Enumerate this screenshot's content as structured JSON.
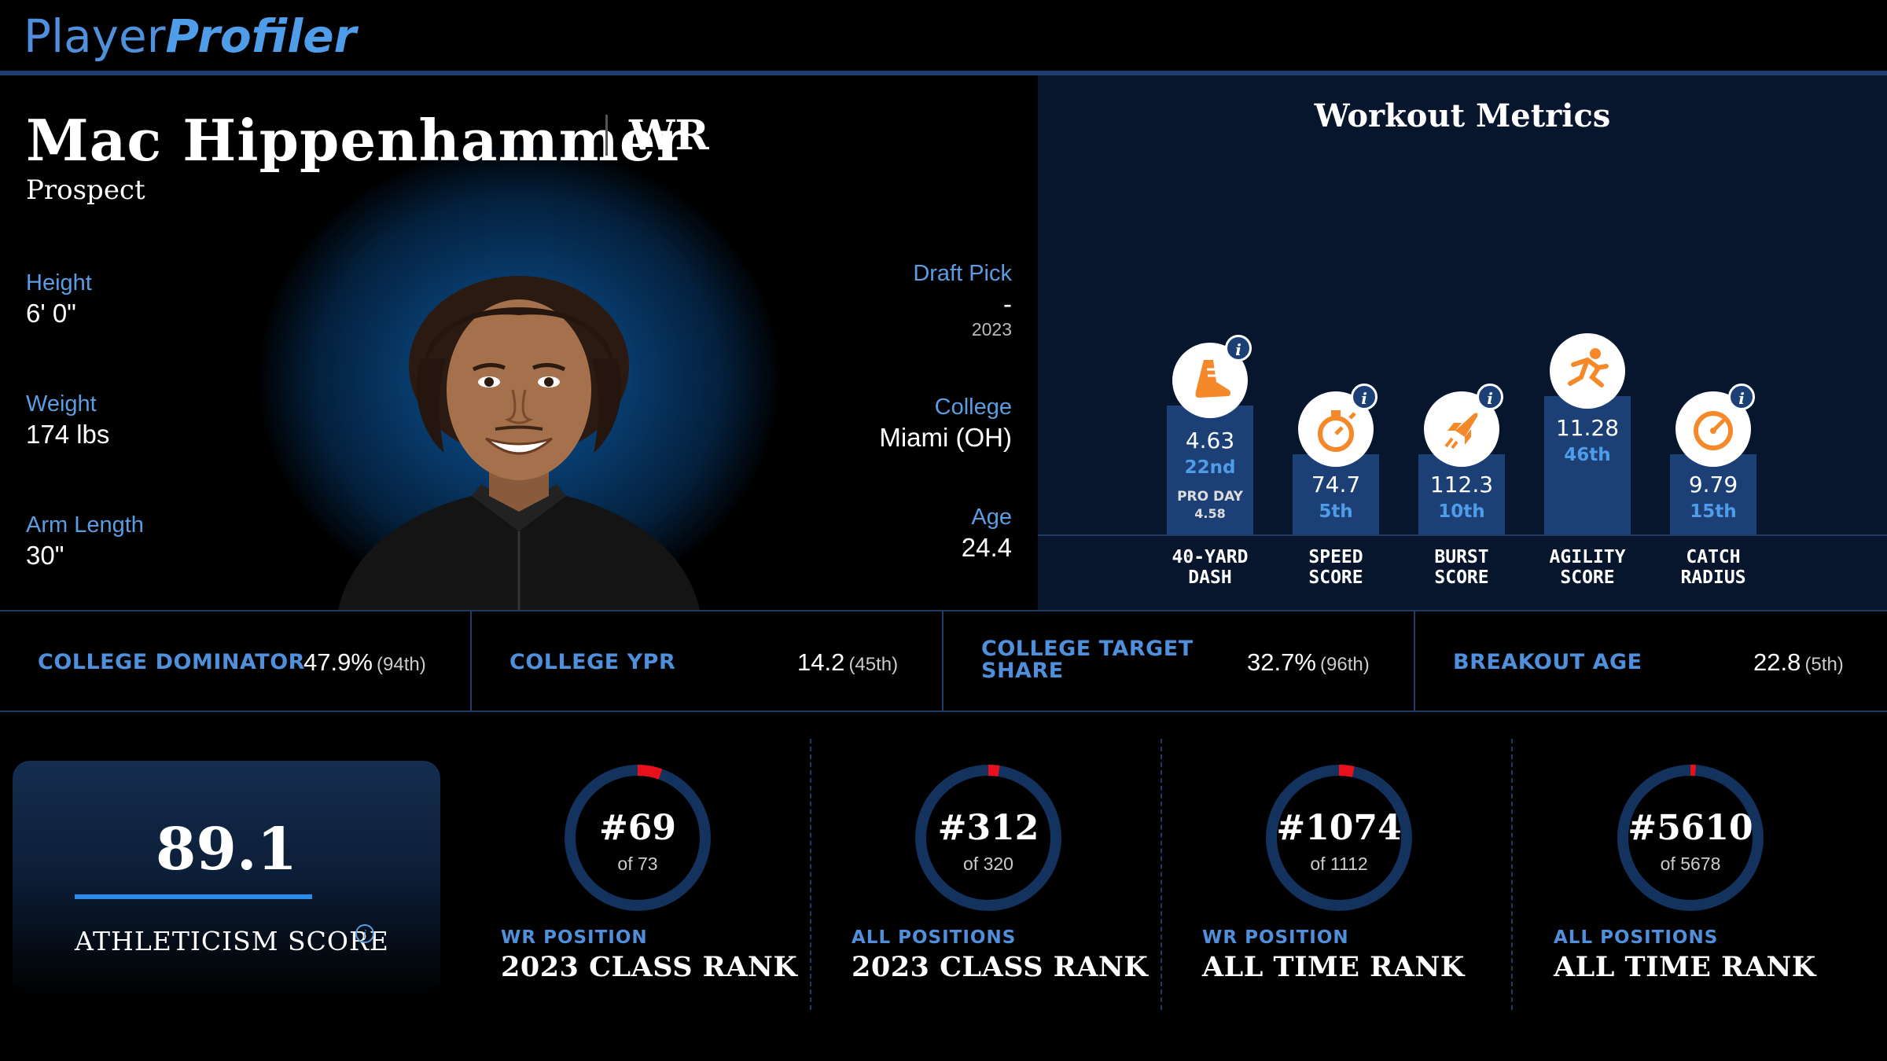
{
  "header": {
    "logo_part1": "Player",
    "logo_part2": "Profiler"
  },
  "player": {
    "name": "Mac Hippenhammer",
    "position": "WR",
    "status": "Prospect",
    "left_stats": [
      {
        "label": "Height",
        "value": "6' 0\""
      },
      {
        "label": "Weight",
        "value": "174 lbs"
      },
      {
        "label": "Arm Length",
        "value": "30\""
      }
    ],
    "draft_pick": {
      "label": "Draft Pick",
      "value": "-",
      "year": "2023"
    },
    "college": {
      "label": "College",
      "value": "Miami (OH)"
    },
    "age": {
      "label": "Age",
      "value": "24.4"
    }
  },
  "workout": {
    "title": "Workout Metrics",
    "metrics": [
      {
        "label1": "40-YARD",
        "label2": "DASH",
        "value": "4.63",
        "rank": "22nd",
        "extra_label": "PRO DAY",
        "extra_value": "4.58",
        "icon": "shoe-icon",
        "level": 0.78
      },
      {
        "label1": "SPEED",
        "label2": "SCORE",
        "value": "74.7",
        "rank": "5th",
        "icon": "stopwatch-icon",
        "level": 0.52
      },
      {
        "label1": "BURST",
        "label2": "SCORE",
        "value": "112.3",
        "rank": "10th",
        "icon": "rocket-icon",
        "level": 0.52
      },
      {
        "label1": "AGILITY",
        "label2": "SCORE",
        "value": "11.28",
        "rank": "46th",
        "icon": "runner-icon",
        "level": 0.88
      },
      {
        "label1": "CATCH",
        "label2": "RADIUS",
        "value": "9.79",
        "rank": "15th",
        "icon": "gauge-icon",
        "level": 0.52
      }
    ],
    "accent": "#f5892a"
  },
  "stats": [
    {
      "label": "COLLEGE DOMINATOR",
      "value": "47.9%",
      "rank": "(94th)"
    },
    {
      "label": "COLLEGE YPR",
      "value": "14.2",
      "rank": "(45th)"
    },
    {
      "label": "COLLEGE TARGET SHARE",
      "label_line1": "COLLEGE TARGET",
      "label_line2": "SHARE",
      "value": "32.7%",
      "rank": "(96th)"
    },
    {
      "label": "BREAKOUT AGE",
      "value": "22.8",
      "rank": "(5th)"
    }
  ],
  "athleticism": {
    "score": "89.1",
    "label": "ATHLETICISM SCORE"
  },
  "ranks": [
    {
      "rank": "#69",
      "of": "of 73",
      "sub": "WR POSITION",
      "main": "2023 CLASS RANK",
      "rank_value": 69,
      "total": 73
    },
    {
      "rank": "#312",
      "of": "of 320",
      "sub": "ALL POSITIONS",
      "main": "2023 CLASS RANK",
      "rank_value": 312,
      "total": 320
    },
    {
      "rank": "#1074",
      "of": "of 1112",
      "sub": "WR POSITION",
      "main": "ALL TIME RANK",
      "rank_value": 1074,
      "total": 1112
    },
    {
      "rank": "#5610",
      "of": "of 5678",
      "sub": "ALL POSITIONS",
      "main": "ALL TIME RANK",
      "rank_value": 5610,
      "total": 5678
    }
  ],
  "colors": {
    "ring_track": "#14325e",
    "ring_fill": "#e8101a",
    "label_blue": "#4f8fdc"
  }
}
